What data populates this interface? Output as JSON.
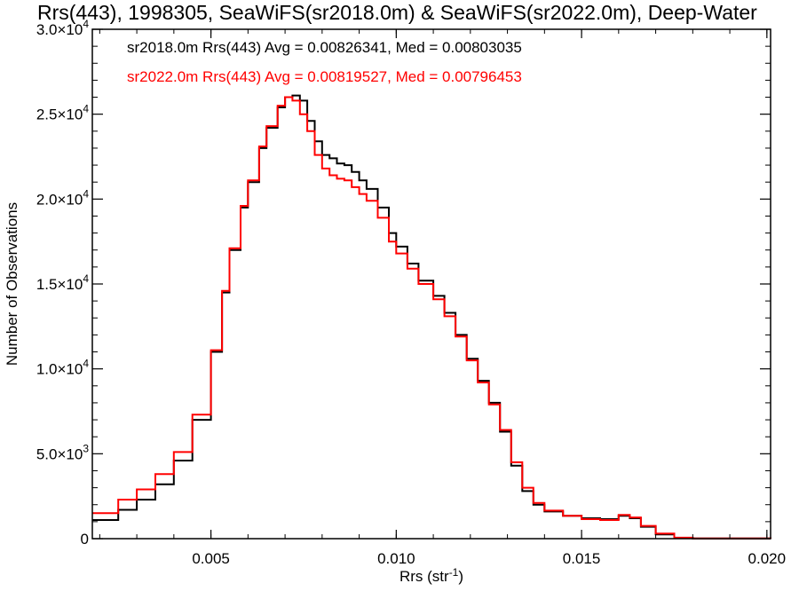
{
  "chart_data": {
    "type": "line",
    "title": "Rrs(443), 1998305, SeaWiFS(sr2018.0m) & SeaWiFS(sr2022.0m), Deep-Water",
    "xlabel": "Rrs (str",
    "xlabel_sup": "-1",
    "xlabel_close": ")",
    "ylabel": "Number of Observations",
    "xlim": [
      0.0018,
      0.0201
    ],
    "ylim": [
      0,
      30000
    ],
    "grid": false,
    "x_ticks": [
      {
        "value": 0.005,
        "label": "0.005"
      },
      {
        "value": 0.01,
        "label": "0.010"
      },
      {
        "value": 0.015,
        "label": "0.015"
      },
      {
        "value": 0.02,
        "label": "0.020"
      }
    ],
    "y_ticks": [
      {
        "value": 0,
        "mant": "0",
        "exp": ""
      },
      {
        "value": 5000,
        "mant": "5.0×10",
        "exp": "3"
      },
      {
        "value": 10000,
        "mant": "1.0×10",
        "exp": "4"
      },
      {
        "value": 15000,
        "mant": "1.5×10",
        "exp": "4"
      },
      {
        "value": 20000,
        "mant": "2.0×10",
        "exp": "4"
      },
      {
        "value": 25000,
        "mant": "2.5×10",
        "exp": "4"
      },
      {
        "value": 30000,
        "mant": "3.0×10",
        "exp": "4"
      }
    ],
    "stats": [
      {
        "text": "sr2018.0m Rrs(443) Avg = 0.00826341, Med = 0.00803035",
        "color": "#000000"
      },
      {
        "text": "sr2022.0m Rrs(443) Avg = 0.00819527, Med = 0.00796453",
        "color": "#ff0000"
      }
    ],
    "series": [
      {
        "color": "#000000",
        "points": [
          [
            0.0018,
            1100
          ],
          [
            0.0025,
            1700
          ],
          [
            0.003,
            2300
          ],
          [
            0.0035,
            3200
          ],
          [
            0.004,
            4600
          ],
          [
            0.0045,
            7000
          ],
          [
            0.005,
            11000
          ],
          [
            0.0053,
            14500
          ],
          [
            0.0055,
            17000
          ],
          [
            0.0058,
            19500
          ],
          [
            0.006,
            21000
          ],
          [
            0.0063,
            23000
          ],
          [
            0.0065,
            24200
          ],
          [
            0.0068,
            25400
          ],
          [
            0.007,
            26000
          ],
          [
            0.0072,
            26100
          ],
          [
            0.0074,
            25800
          ],
          [
            0.0076,
            24600
          ],
          [
            0.0078,
            23400
          ],
          [
            0.008,
            22600
          ],
          [
            0.0082,
            22400
          ],
          [
            0.0084,
            22100
          ],
          [
            0.0086,
            22000
          ],
          [
            0.0088,
            21600
          ],
          [
            0.009,
            21100
          ],
          [
            0.0092,
            20600
          ],
          [
            0.0095,
            19500
          ],
          [
            0.0098,
            18000
          ],
          [
            0.01,
            17200
          ],
          [
            0.0103,
            16200
          ],
          [
            0.0106,
            15200
          ],
          [
            0.011,
            14300
          ],
          [
            0.0113,
            13300
          ],
          [
            0.0116,
            12000
          ],
          [
            0.0119,
            10600
          ],
          [
            0.0122,
            9300
          ],
          [
            0.0125,
            8000
          ],
          [
            0.0128,
            6300
          ],
          [
            0.0131,
            4300
          ],
          [
            0.0134,
            2800
          ],
          [
            0.0137,
            2000
          ],
          [
            0.014,
            1600
          ],
          [
            0.0145,
            1350
          ],
          [
            0.015,
            1200
          ],
          [
            0.0155,
            1150
          ],
          [
            0.016,
            1350
          ],
          [
            0.0163,
            1200
          ],
          [
            0.0166,
            700
          ],
          [
            0.017,
            250
          ],
          [
            0.0175,
            50
          ],
          [
            0.018,
            10
          ],
          [
            0.0201,
            0
          ]
        ]
      },
      {
        "color": "#ff0000",
        "points": [
          [
            0.0018,
            1500
          ],
          [
            0.0025,
            2300
          ],
          [
            0.003,
            2900
          ],
          [
            0.0035,
            3800
          ],
          [
            0.004,
            5100
          ],
          [
            0.0045,
            7300
          ],
          [
            0.005,
            11100
          ],
          [
            0.0053,
            14600
          ],
          [
            0.0055,
            17100
          ],
          [
            0.0058,
            19600
          ],
          [
            0.006,
            21100
          ],
          [
            0.0063,
            23100
          ],
          [
            0.0065,
            24300
          ],
          [
            0.0068,
            25500
          ],
          [
            0.007,
            26000
          ],
          [
            0.0072,
            25800
          ],
          [
            0.0074,
            25000
          ],
          [
            0.0076,
            24000
          ],
          [
            0.0078,
            22600
          ],
          [
            0.008,
            21800
          ],
          [
            0.0082,
            21400
          ],
          [
            0.0084,
            21200
          ],
          [
            0.0086,
            21100
          ],
          [
            0.0088,
            20700
          ],
          [
            0.009,
            20300
          ],
          [
            0.0092,
            19900
          ],
          [
            0.0095,
            18900
          ],
          [
            0.0098,
            17500
          ],
          [
            0.01,
            16800
          ],
          [
            0.0103,
            15900
          ],
          [
            0.0106,
            15000
          ],
          [
            0.011,
            14100
          ],
          [
            0.0113,
            13100
          ],
          [
            0.0116,
            11900
          ],
          [
            0.0119,
            10500
          ],
          [
            0.0122,
            9200
          ],
          [
            0.0125,
            7900
          ],
          [
            0.0128,
            6400
          ],
          [
            0.0131,
            4500
          ],
          [
            0.0134,
            3000
          ],
          [
            0.0137,
            2100
          ],
          [
            0.014,
            1650
          ],
          [
            0.0145,
            1350
          ],
          [
            0.015,
            1150
          ],
          [
            0.0155,
            1100
          ],
          [
            0.016,
            1400
          ],
          [
            0.0163,
            1250
          ],
          [
            0.0166,
            750
          ],
          [
            0.017,
            300
          ],
          [
            0.0175,
            60
          ],
          [
            0.018,
            10
          ],
          [
            0.0201,
            0
          ]
        ]
      }
    ]
  }
}
